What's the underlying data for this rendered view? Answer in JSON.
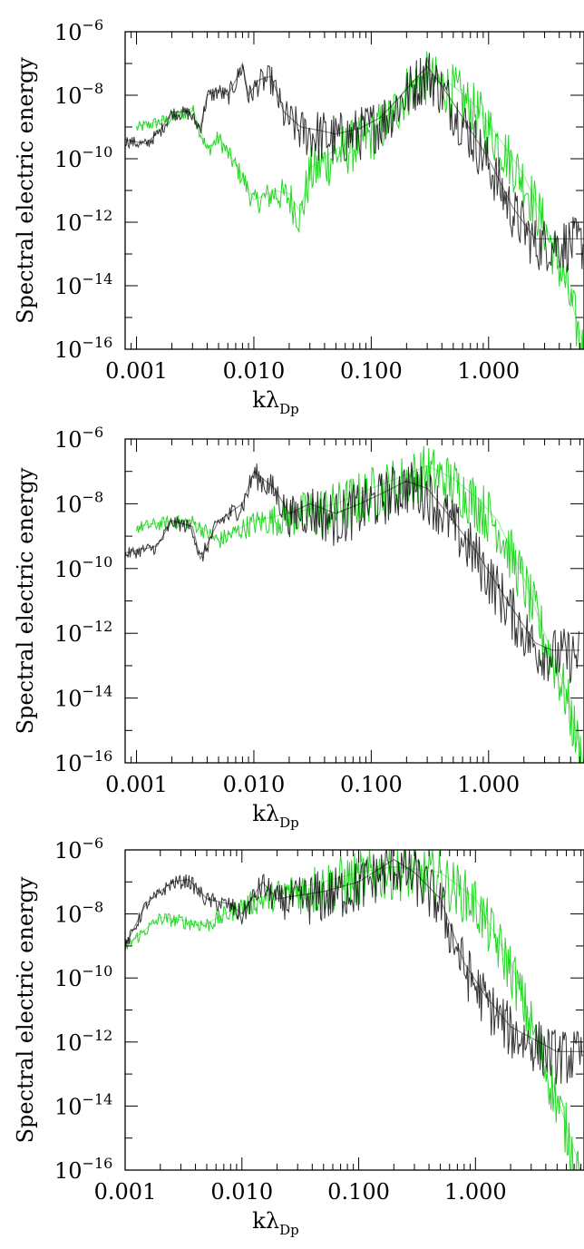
{
  "chart_data": [
    {
      "type": "line",
      "x_scale": "log",
      "y_scale": "log",
      "xlim": [
        0.0008,
        6.5
      ],
      "ylim": [
        1e-16,
        1e-06
      ],
      "xlabel_main": "kλ",
      "xlabel_sub": "Dp",
      "ylabel": "Spectral electric energy",
      "x_ticks": [
        {
          "value": 0.001,
          "label": "0.001"
        },
        {
          "value": 0.01,
          "label": "0.010"
        },
        {
          "value": 0.1,
          "label": "0.100"
        },
        {
          "value": 1,
          "label": "1.000"
        }
      ],
      "y_ticks": [
        {
          "value": 1e-16,
          "base": "10",
          "exp": "−16"
        },
        {
          "value": 1e-14,
          "base": "10",
          "exp": "−14"
        },
        {
          "value": 1e-12,
          "base": "10",
          "exp": "−12"
        },
        {
          "value": 1e-10,
          "base": "10",
          "exp": "−10"
        },
        {
          "value": 1e-08,
          "base": "10",
          "exp": "−8"
        },
        {
          "value": 1e-06,
          "base": "10",
          "exp": "−6"
        }
      ],
      "series": [
        {
          "color": "#000000",
          "values": [
            [
              0.0008,
              4e-10
            ],
            [
              0.0012,
              3e-10
            ],
            [
              0.0016,
              8e-10
            ],
            [
              0.002,
              3e-09
            ],
            [
              0.0028,
              3e-09
            ],
            [
              0.0035,
              1e-09
            ],
            [
              0.004,
              1e-08
            ],
            [
              0.005,
              1.5e-08
            ],
            [
              0.006,
              1e-08
            ],
            [
              0.007,
              3e-08
            ],
            [
              0.008,
              1e-07
            ],
            [
              0.009,
              1e-08
            ],
            [
              0.011,
              3e-08
            ],
            [
              0.014,
              4e-08
            ],
            [
              0.018,
              3e-09
            ],
            [
              0.025,
              1e-09
            ],
            [
              0.035,
              8e-10
            ],
            [
              0.05,
              6e-10
            ],
            [
              0.08,
              9e-10
            ],
            [
              0.12,
              2e-09
            ],
            [
              0.18,
              1e-08
            ],
            [
              0.25,
              4e-08
            ],
            [
              0.3,
              8e-08
            ],
            [
              0.4,
              2e-08
            ],
            [
              0.6,
              2e-09
            ],
            [
              1.0,
              1e-10
            ],
            [
              1.6,
              3e-12
            ],
            [
              2.5,
              3e-13
            ],
            [
              4.0,
              3e-13
            ],
            [
              5.5,
              3e-13
            ],
            [
              6.5,
              3e-13
            ]
          ]
        },
        {
          "color": "#00d000",
          "values": [
            [
              0.001,
              1e-09
            ],
            [
              0.002,
              2e-09
            ],
            [
              0.003,
              4e-09
            ],
            [
              0.004,
              2e-10
            ],
            [
              0.005,
              5e-10
            ],
            [
              0.008,
              3e-11
            ],
            [
              0.01,
              5e-12
            ],
            [
              0.015,
              1e-11
            ],
            [
              0.02,
              8e-12
            ],
            [
              0.025,
              2e-12
            ],
            [
              0.03,
              5e-11
            ],
            [
              0.05,
              2e-10
            ],
            [
              0.1,
              8e-10
            ],
            [
              0.15,
              3e-09
            ],
            [
              0.2,
              2e-08
            ],
            [
              0.3,
              5e-08
            ],
            [
              0.5,
              2e-08
            ],
            [
              0.8,
              4e-09
            ],
            [
              1.2,
              5e-10
            ],
            [
              2.0,
              3e-11
            ],
            [
              3.0,
              1e-12
            ],
            [
              4.5,
              2e-14
            ],
            [
              6.5,
              1e-16
            ]
          ]
        }
      ]
    },
    {
      "type": "line",
      "x_scale": "log",
      "y_scale": "log",
      "xlim": [
        0.0008,
        6.5
      ],
      "ylim": [
        1e-16,
        1e-06
      ],
      "xlabel_main": "kλ",
      "xlabel_sub": "Dp",
      "ylabel": "Spectral electric energy",
      "x_ticks": [
        {
          "value": 0.001,
          "label": "0.001"
        },
        {
          "value": 0.01,
          "label": "0.010"
        },
        {
          "value": 0.1,
          "label": "0.100"
        },
        {
          "value": 1,
          "label": "1.000"
        }
      ],
      "y_ticks": [
        {
          "value": 1e-16,
          "base": "10",
          "exp": "−16"
        },
        {
          "value": 1e-14,
          "base": "10",
          "exp": "−14"
        },
        {
          "value": 1e-12,
          "base": "10",
          "exp": "−12"
        },
        {
          "value": 1e-10,
          "base": "10",
          "exp": "−10"
        },
        {
          "value": 1e-08,
          "base": "10",
          "exp": "−8"
        },
        {
          "value": 1e-06,
          "base": "10",
          "exp": "−6"
        }
      ],
      "series": [
        {
          "color": "#000000",
          "values": [
            [
              0.0008,
              3e-10
            ],
            [
              0.0015,
              5e-10
            ],
            [
              0.002,
              3e-09
            ],
            [
              0.003,
              2e-09
            ],
            [
              0.0035,
              2e-10
            ],
            [
              0.005,
              3e-09
            ],
            [
              0.008,
              1e-08
            ],
            [
              0.01,
              1e-07
            ],
            [
              0.015,
              3e-08
            ],
            [
              0.02,
              5e-09
            ],
            [
              0.03,
              1e-08
            ],
            [
              0.05,
              5e-09
            ],
            [
              0.08,
              1e-08
            ],
            [
              0.12,
              2e-08
            ],
            [
              0.2,
              5e-08
            ],
            [
              0.3,
              3e-08
            ],
            [
              0.5,
              3e-09
            ],
            [
              0.8,
              3e-10
            ],
            [
              1.5,
              8e-12
            ],
            [
              2.5,
              5e-13
            ],
            [
              3.5,
              3e-13
            ],
            [
              5.0,
              3e-13
            ],
            [
              6.0,
              3e-13
            ]
          ]
        },
        {
          "color": "#00d000",
          "values": [
            [
              0.001,
              2e-09
            ],
            [
              0.002,
              3e-09
            ],
            [
              0.003,
              3e-09
            ],
            [
              0.005,
              8e-10
            ],
            [
              0.01,
              3e-09
            ],
            [
              0.02,
              5e-09
            ],
            [
              0.05,
              1e-08
            ],
            [
              0.1,
              3e-08
            ],
            [
              0.2,
              8e-08
            ],
            [
              0.3,
              1.5e-07
            ],
            [
              0.5,
              6e-08
            ],
            [
              0.8,
              1.5e-08
            ],
            [
              1.2,
              3e-09
            ],
            [
              2.0,
              5e-11
            ],
            [
              3.0,
              1e-12
            ],
            [
              4.5,
              2e-14
            ],
            [
              6.5,
              1e-16
            ]
          ]
        }
      ]
    },
    {
      "type": "line",
      "x_scale": "log",
      "y_scale": "log",
      "xlim": [
        0.001,
        8.5
      ],
      "ylim": [
        1e-16,
        1e-06
      ],
      "xlabel_main": "kλ",
      "xlabel_sub": "Dp",
      "ylabel": "Spectral electric energy",
      "x_ticks": [
        {
          "value": 0.001,
          "label": "0.001"
        },
        {
          "value": 0.01,
          "label": "0.010"
        },
        {
          "value": 0.1,
          "label": "0.100"
        },
        {
          "value": 1,
          "label": "1.000"
        }
      ],
      "y_ticks": [
        {
          "value": 1e-16,
          "base": "10",
          "exp": "−16"
        },
        {
          "value": 1e-14,
          "base": "10",
          "exp": "−14"
        },
        {
          "value": 1e-12,
          "base": "10",
          "exp": "−12"
        },
        {
          "value": 1e-10,
          "base": "10",
          "exp": "−10"
        },
        {
          "value": 1e-08,
          "base": "10",
          "exp": "−8"
        },
        {
          "value": 1e-06,
          "base": "10",
          "exp": "−6"
        }
      ],
      "series": [
        {
          "color": "#000000",
          "values": [
            [
              0.001,
              1e-09
            ],
            [
              0.0015,
              2e-08
            ],
            [
              0.0025,
              1e-07
            ],
            [
              0.0035,
              1.2e-07
            ],
            [
              0.005,
              3e-08
            ],
            [
              0.008,
              2e-08
            ],
            [
              0.01,
              1e-08
            ],
            [
              0.015,
              1e-07
            ],
            [
              0.02,
              3e-08
            ],
            [
              0.05,
              5e-08
            ],
            [
              0.1,
              1e-07
            ],
            [
              0.2,
              5e-07
            ],
            [
              0.3,
              2e-07
            ],
            [
              0.5,
              3e-08
            ],
            [
              0.8,
              3e-10
            ],
            [
              1.2,
              3e-11
            ],
            [
              2.0,
              3e-12
            ],
            [
              3.5,
              1e-12
            ],
            [
              5.0,
              5e-13
            ],
            [
              8.5,
              5e-13
            ]
          ]
        },
        {
          "color": "#00d000",
          "values": [
            [
              0.001,
              1e-09
            ],
            [
              0.002,
              8e-09
            ],
            [
              0.005,
              5e-09
            ],
            [
              0.01,
              2e-08
            ],
            [
              0.02,
              5e-08
            ],
            [
              0.05,
              1e-07
            ],
            [
              0.1,
              2e-07
            ],
            [
              0.2,
              3e-07
            ],
            [
              0.5,
              2e-07
            ],
            [
              1.0,
              3e-08
            ],
            [
              2.0,
              3e-10
            ],
            [
              3.0,
              5e-12
            ],
            [
              5.0,
              2e-14
            ],
            [
              8.0,
              1e-16
            ]
          ]
        }
      ]
    }
  ]
}
